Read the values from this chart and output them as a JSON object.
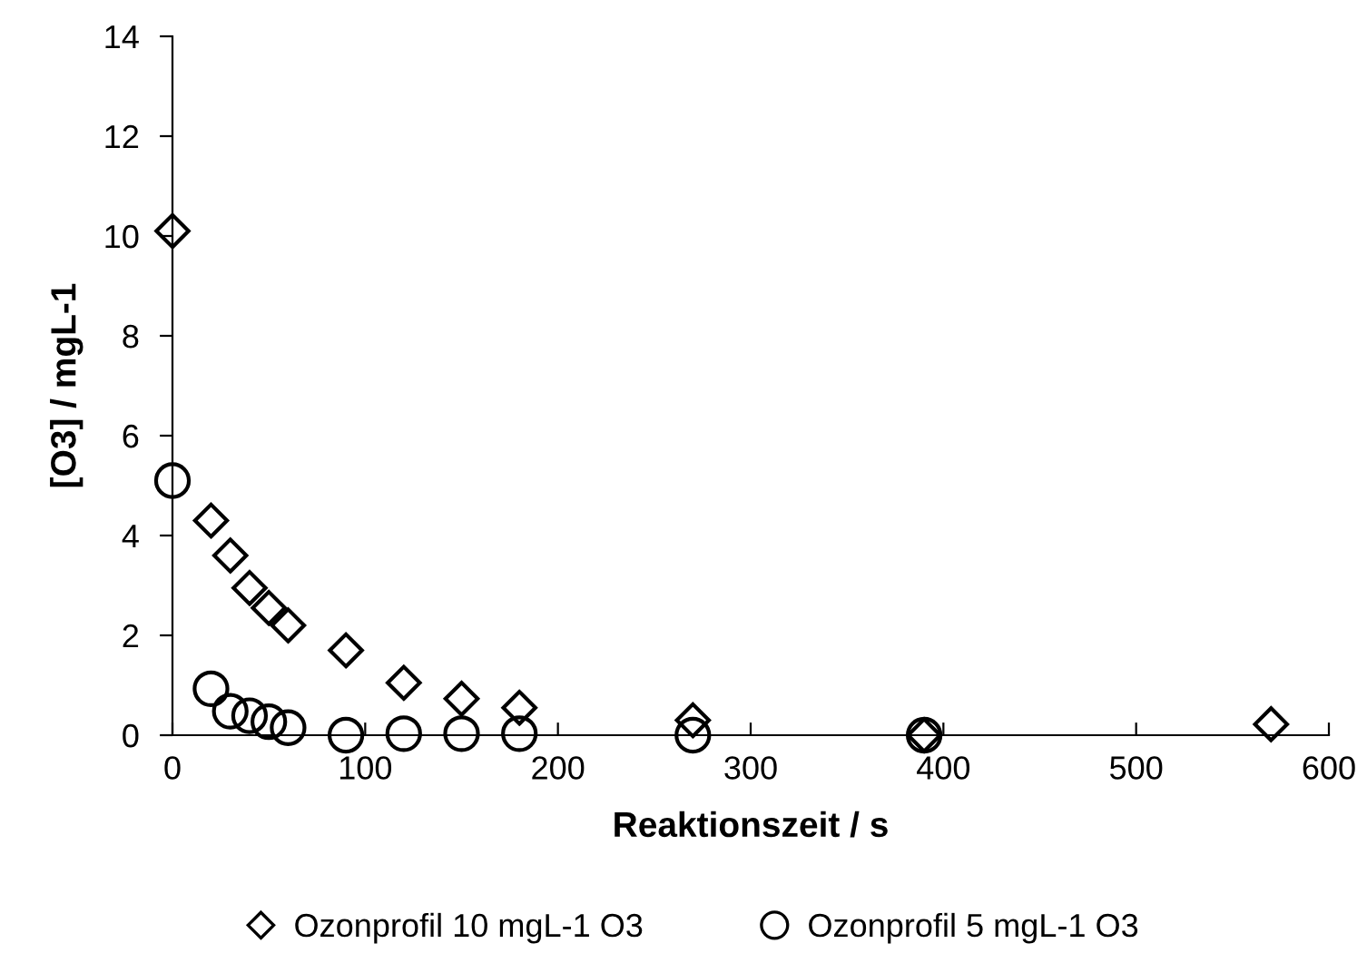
{
  "chart_data": {
    "type": "scatter",
    "xlabel": "Reaktionszeit / s",
    "ylabel": "[O3] / mgL-1",
    "xlim": [
      0,
      600
    ],
    "xticks": [
      0,
      100,
      200,
      300,
      400,
      500,
      600
    ],
    "ylim": [
      0,
      14
    ],
    "yticks": [
      0,
      2,
      4,
      6,
      8,
      10,
      12,
      14
    ],
    "grid": false,
    "legend": "bottom",
    "series": [
      {
        "name": "Ozonprofil 10 mgL-1 O3",
        "color": "#000000",
        "marker": "diamond",
        "x": [
          0,
          20,
          30,
          40,
          50,
          60,
          90,
          120,
          150,
          180,
          270,
          390,
          570
        ],
        "values": [
          10.1,
          4.3,
          3.6,
          2.95,
          2.55,
          2.2,
          1.7,
          1.05,
          0.73,
          0.55,
          0.3,
          0.0,
          0.22
        ]
      },
      {
        "name": "Ozonprofil 5 mgL-1 O3",
        "color": "#000000",
        "marker": "circle",
        "x": [
          0,
          20,
          30,
          40,
          50,
          60,
          90,
          120,
          150,
          180,
          270,
          390
        ],
        "values": [
          5.1,
          0.93,
          0.48,
          0.39,
          0.27,
          0.15,
          0.0,
          0.03,
          0.03,
          0.03,
          0.0,
          0.0
        ]
      }
    ]
  }
}
